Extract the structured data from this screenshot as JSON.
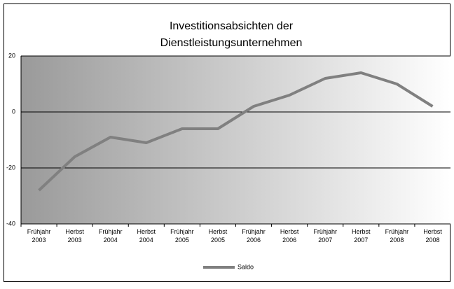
{
  "chart_data": {
    "type": "line",
    "title": [
      "Investitionsabsichten der",
      "Dienstleistungsunternehmen"
    ],
    "categories": [
      "Frühjahr 2003",
      "Herbst 2003",
      "Frühjahr 2004",
      "Herbst 2004",
      "Frühjahr 2005",
      "Herbst 2005",
      "Frühjahr 2006",
      "Herbst 2006",
      "Frühjahr 2007",
      "Herbst 2007",
      "Frühjahr 2008",
      "Herbst 2008"
    ],
    "series": [
      {
        "name": "Saldo",
        "color": "#808080",
        "values": [
          -28,
          -16,
          -9,
          -11,
          -6,
          -6,
          2,
          6,
          12,
          14,
          10,
          2
        ]
      }
    ],
    "ylim": [
      -40,
      20
    ],
    "yticks": [
      -40,
      -20,
      0,
      20
    ],
    "grid": true,
    "legend": "bottom"
  }
}
